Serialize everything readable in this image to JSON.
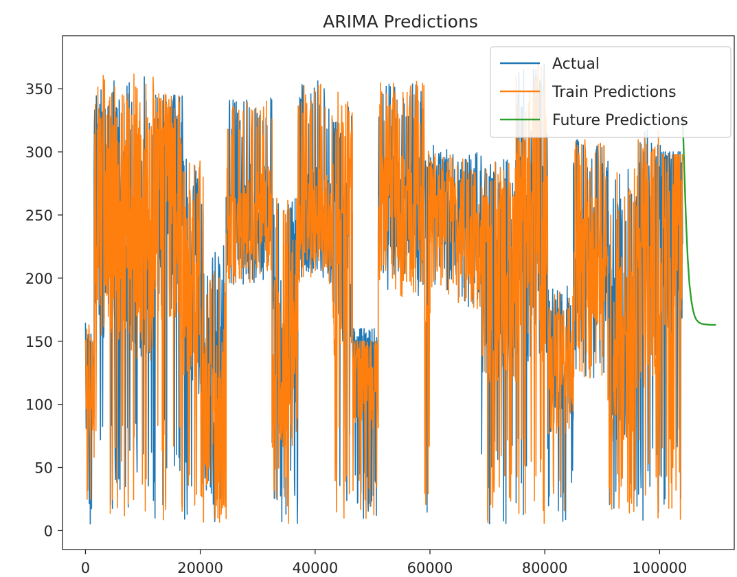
{
  "chart_data": {
    "type": "line",
    "title": "ARIMA Predictions",
    "xlabel": "",
    "ylabel": "",
    "xlim": [
      -4000,
      113000
    ],
    "ylim": [
      -15,
      392
    ],
    "xticks": [
      0,
      20000,
      40000,
      60000,
      80000,
      100000
    ],
    "yticks": [
      0,
      50,
      100,
      150,
      200,
      250,
      300,
      350
    ],
    "xtick_labels": [
      "0",
      "20000",
      "40000",
      "60000",
      "80000",
      "100000"
    ],
    "ytick_labels": [
      "0",
      "50",
      "100",
      "150",
      "200",
      "250",
      "300",
      "350"
    ],
    "grid": false,
    "legend_position": "top-right",
    "series": [
      {
        "name": "Actual",
        "color": "#1f77b4",
        "segments": [
          {
            "x0": 0,
            "x1": 1500,
            "low": 5,
            "high": 165,
            "base": 115
          },
          {
            "x0": 1500,
            "x1": 8000,
            "low": 5,
            "high": 360,
            "base": 250
          },
          {
            "x0": 8000,
            "x1": 12000,
            "low": 5,
            "high": 360,
            "base": 235
          },
          {
            "x0": 12000,
            "x1": 17000,
            "low": 5,
            "high": 345,
            "base": 260
          },
          {
            "x0": 17000,
            "x1": 20500,
            "low": 5,
            "high": 300,
            "base": 180
          },
          {
            "x0": 20500,
            "x1": 24500,
            "low": 5,
            "high": 228,
            "base": 110
          },
          {
            "x0": 24500,
            "x1": 32500,
            "low": 195,
            "high": 343,
            "base": 250
          },
          {
            "x0": 32500,
            "x1": 37000,
            "low": 5,
            "high": 265,
            "base": 140
          },
          {
            "x0": 37000,
            "x1": 43000,
            "low": 195,
            "high": 357,
            "base": 245
          },
          {
            "x0": 43000,
            "x1": 46500,
            "low": 5,
            "high": 350,
            "base": 235
          },
          {
            "x0": 46500,
            "x1": 51000,
            "low": 5,
            "high": 160,
            "base": 128
          },
          {
            "x0": 51000,
            "x1": 59000,
            "low": 185,
            "high": 355,
            "base": 255
          },
          {
            "x0": 59000,
            "x1": 60000,
            "low": 5,
            "high": 305,
            "base": 220
          },
          {
            "x0": 60000,
            "x1": 64500,
            "low": 185,
            "high": 306,
            "base": 260
          },
          {
            "x0": 64500,
            "x1": 69000,
            "low": 175,
            "high": 300,
            "base": 230
          },
          {
            "x0": 69000,
            "x1": 75000,
            "low": 5,
            "high": 298,
            "base": 200
          },
          {
            "x0": 75000,
            "x1": 80500,
            "low": 5,
            "high": 372,
            "base": 230
          },
          {
            "x0": 80500,
            "x1": 85000,
            "low": 5,
            "high": 195,
            "base": 130
          },
          {
            "x0": 85000,
            "x1": 91000,
            "low": 120,
            "high": 310,
            "base": 215
          },
          {
            "x0": 91000,
            "x1": 96000,
            "low": 5,
            "high": 290,
            "base": 150
          },
          {
            "x0": 96000,
            "x1": 100500,
            "low": 5,
            "high": 320,
            "base": 200
          },
          {
            "x0": 100500,
            "x1": 104000,
            "low": 5,
            "high": 300,
            "base": 240
          }
        ]
      },
      {
        "name": "Train Predictions",
        "color": "#ff7f0e",
        "segments": [
          {
            "x0": 0,
            "x1": 1500,
            "low": 5,
            "high": 163,
            "base": 110
          },
          {
            "x0": 1500,
            "x1": 8000,
            "low": 5,
            "high": 361,
            "base": 248
          },
          {
            "x0": 8000,
            "x1": 12000,
            "low": 5,
            "high": 362,
            "base": 232
          },
          {
            "x0": 12000,
            "x1": 17000,
            "low": 5,
            "high": 346,
            "base": 258
          },
          {
            "x0": 17000,
            "x1": 20500,
            "low": 5,
            "high": 297,
            "base": 175
          },
          {
            "x0": 20500,
            "x1": 24500,
            "low": 5,
            "high": 220,
            "base": 105
          },
          {
            "x0": 24500,
            "x1": 32500,
            "low": 195,
            "high": 344,
            "base": 248
          },
          {
            "x0": 32500,
            "x1": 37000,
            "low": 5,
            "high": 264,
            "base": 135
          },
          {
            "x0": 37000,
            "x1": 43000,
            "low": 195,
            "high": 356,
            "base": 243
          },
          {
            "x0": 43000,
            "x1": 46500,
            "low": 5,
            "high": 352,
            "base": 232
          },
          {
            "x0": 46500,
            "x1": 51000,
            "low": 5,
            "high": 150,
            "base": 120
          },
          {
            "x0": 51000,
            "x1": 59000,
            "low": 185,
            "high": 356,
            "base": 252
          },
          {
            "x0": 59000,
            "x1": 60000,
            "low": 5,
            "high": 304,
            "base": 218
          },
          {
            "x0": 60000,
            "x1": 64500,
            "low": 185,
            "high": 300,
            "base": 255
          },
          {
            "x0": 64500,
            "x1": 69000,
            "low": 175,
            "high": 297,
            "base": 226
          },
          {
            "x0": 69000,
            "x1": 75000,
            "low": 5,
            "high": 296,
            "base": 196
          },
          {
            "x0": 75000,
            "x1": 80500,
            "low": 5,
            "high": 373,
            "base": 228
          },
          {
            "x0": 80500,
            "x1": 85000,
            "low": 5,
            "high": 190,
            "base": 125
          },
          {
            "x0": 85000,
            "x1": 91000,
            "low": 120,
            "high": 310,
            "base": 212
          },
          {
            "x0": 91000,
            "x1": 96000,
            "low": 5,
            "high": 288,
            "base": 145
          },
          {
            "x0": 96000,
            "x1": 100500,
            "low": 5,
            "high": 318,
            "base": 198
          },
          {
            "x0": 100500,
            "x1": 104000,
            "low": 5,
            "high": 298,
            "base": 236
          }
        ]
      },
      {
        "name": "Future Predictions",
        "color": "#2ca02c",
        "x": [
          104000,
          104300,
          104600,
          104900,
          105200,
          105500,
          105800,
          106100,
          106400,
          106800,
          107200,
          107700,
          108300,
          109000,
          109800
        ],
        "y": [
          330,
          285,
          245,
          215,
          195,
          183,
          175,
          170,
          167,
          165,
          164,
          163.5,
          163.2,
          163,
          163
        ]
      }
    ]
  }
}
